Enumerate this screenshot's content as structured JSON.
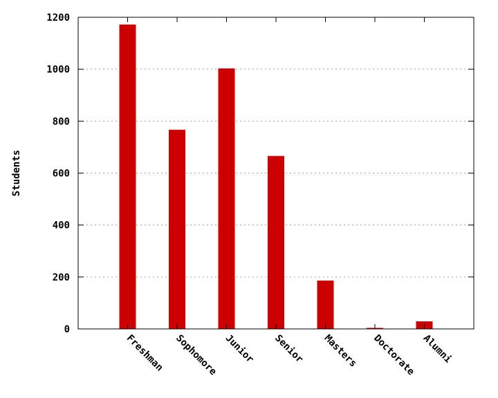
{
  "chart_data": {
    "type": "bar",
    "title": "",
    "xlabel": "",
    "ylabel": "Students",
    "categories": [
      "Freshman",
      "Sophomore",
      "Junior",
      "Senior",
      "Masters",
      "Doctorate",
      "Alumni"
    ],
    "values": [
      1172,
      767,
      1003,
      666,
      186,
      4,
      29
    ],
    "ylim": [
      0,
      1200
    ],
    "yticks": [
      0,
      200,
      400,
      600,
      800,
      1000,
      1200
    ],
    "grid": "horizontal-dashed",
    "legend": "none",
    "bar_color": "#cc0000"
  }
}
